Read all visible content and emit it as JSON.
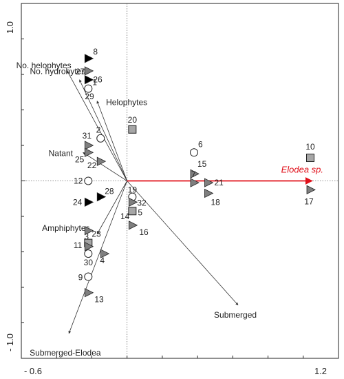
{
  "chart_data": {
    "type": "scatter",
    "title": "",
    "xlabel": "",
    "ylabel": "",
    "xlim": [
      -0.6,
      1.2
    ],
    "ylim": [
      -1.0,
      1.0
    ],
    "x_tick_labels": [
      "- 0.6",
      "1.2"
    ],
    "y_tick_labels": [
      "1.0",
      "- 1.0"
    ],
    "grid": false,
    "axes_lines": "dotted x=0 and y=0",
    "highlight_color": "#e0101a",
    "vectors": [
      {
        "name": "No. helophytes",
        "x": -0.34,
        "y": 0.62
      },
      {
        "name": "No. hydrohytes",
        "x": -0.27,
        "y": 0.57
      },
      {
        "name": "Helophytes",
        "x": -0.17,
        "y": 0.45
      },
      {
        "name": "Natant",
        "x": -0.25,
        "y": 0.16
      },
      {
        "name": "Amphiphytes",
        "x": -0.17,
        "y": -0.3
      },
      {
        "name": "Submerged",
        "x": 0.63,
        "y": -0.7
      },
      {
        "name": "Submerged-Elodea",
        "x": -0.33,
        "y": -0.86
      },
      {
        "name": "Elodea sp.",
        "x": 1.05,
        "y": 0.0,
        "color": "#e0101a",
        "italic": true
      }
    ],
    "points": [
      {
        "label": "8",
        "x": -0.22,
        "y": 0.69,
        "shape": "triangle",
        "fill": "#000000"
      },
      {
        "label": "27",
        "x": -0.22,
        "y": 0.62,
        "shape": "triangle",
        "fill": "#7f7f7f"
      },
      {
        "label": "26",
        "x": -0.22,
        "y": 0.57,
        "shape": "triangle",
        "fill": "#000000"
      },
      {
        "label": "1",
        "x": -0.22,
        "y": 0.52,
        "shape": "circle",
        "fill": "#ffffff"
      },
      {
        "label": "29",
        "x": -0.22,
        "y": 0.48,
        "shape": "none"
      },
      {
        "label": "20",
        "x": 0.03,
        "y": 0.29,
        "shape": "square",
        "fill": "#a6a6a6"
      },
      {
        "label": "2",
        "x": -0.15,
        "y": 0.24,
        "shape": "circle",
        "fill": "#ffffff"
      },
      {
        "label": "31",
        "x": -0.22,
        "y": 0.2,
        "shape": "triangle",
        "fill": "#7f7f7f"
      },
      {
        "label": "25",
        "x": -0.22,
        "y": 0.16,
        "shape": "triangle",
        "fill": "#7f7f7f"
      },
      {
        "label": "22",
        "x": -0.15,
        "y": 0.11,
        "shape": "triangle",
        "fill": "#7f7f7f"
      },
      {
        "label": "12",
        "x": -0.22,
        "y": 0.0,
        "shape": "circle",
        "fill": "#ffffff"
      },
      {
        "label": "6",
        "x": 0.38,
        "y": 0.16,
        "shape": "circle",
        "fill": "#ffffff"
      },
      {
        "label": "10",
        "x": 1.04,
        "y": 0.13,
        "shape": "square",
        "fill": "#a6a6a6"
      },
      {
        "label": "15",
        "x": 0.38,
        "y": 0.04,
        "shape": "triangle",
        "fill": "#7f7f7f"
      },
      {
        "label": "7",
        "x": 0.38,
        "y": -0.01,
        "shape": "triangle",
        "fill": "#7f7f7f"
      },
      {
        "label": "21",
        "x": 0.46,
        "y": -0.01,
        "shape": "triangle",
        "fill": "#7f7f7f"
      },
      {
        "label": "18",
        "x": 0.46,
        "y": -0.07,
        "shape": "triangle",
        "fill": "#7f7f7f"
      },
      {
        "label": "17",
        "x": 1.04,
        "y": -0.05,
        "shape": "triangle",
        "fill": "#7f7f7f"
      },
      {
        "label": "28",
        "x": -0.15,
        "y": -0.09,
        "shape": "triangle",
        "fill": "#000000"
      },
      {
        "label": "24",
        "x": -0.22,
        "y": -0.12,
        "shape": "triangle",
        "fill": "#000000"
      },
      {
        "label": "19",
        "x": 0.03,
        "y": -0.09,
        "shape": "circle",
        "fill": "#ffffff"
      },
      {
        "label": "32",
        "x": 0.03,
        "y": -0.12,
        "shape": "triangle",
        "fill": "#7f7f7f"
      },
      {
        "label": "5",
        "x": 0.03,
        "y": -0.17,
        "shape": "square",
        "fill": "#a6a6a6"
      },
      {
        "label": "14",
        "x": 0.03,
        "y": -0.2,
        "shape": "none"
      },
      {
        "label": "16",
        "x": 0.03,
        "y": -0.25,
        "shape": "triangle",
        "fill": "#7f7f7f"
      },
      {
        "label": "3",
        "x": -0.22,
        "y": -0.28,
        "shape": "triangle",
        "fill": "#7f7f7f"
      },
      {
        "label": "23",
        "x": -0.22,
        "y": -0.35,
        "shape": "square",
        "fill": "#a6a6a6"
      },
      {
        "label": "11",
        "x": -0.22,
        "y": -0.37,
        "shape": "triangle",
        "fill": "#7f7f7f"
      },
      {
        "label": "30",
        "x": -0.22,
        "y": -0.41,
        "shape": "circle",
        "fill": "#ffffff"
      },
      {
        "label": "4",
        "x": -0.13,
        "y": -0.41,
        "shape": "triangle",
        "fill": "#7f7f7f"
      },
      {
        "label": "9",
        "x": -0.22,
        "y": -0.54,
        "shape": "circle",
        "fill": "#ffffff"
      },
      {
        "label": "13",
        "x": -0.22,
        "y": -0.63,
        "shape": "triangle",
        "fill": "#7f7f7f"
      }
    ]
  }
}
